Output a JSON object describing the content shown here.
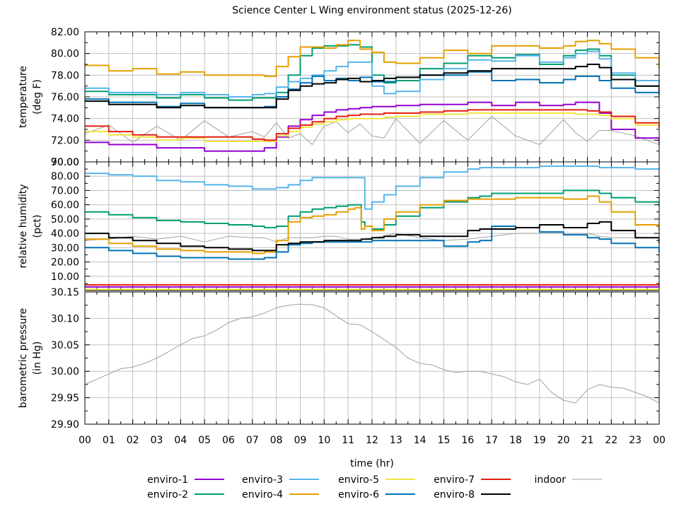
{
  "chart_data": {
    "type": "line",
    "title": "Science Center L Wing environment status (2025-12-26)",
    "xlabel": "time (hr)",
    "x_tick_labels": [
      "00",
      "01",
      "02",
      "03",
      "04",
      "05",
      "06",
      "07",
      "08",
      "09",
      "10",
      "11",
      "12",
      "13",
      "14",
      "15",
      "16",
      "17",
      "18",
      "19",
      "20",
      "21",
      "22",
      "23",
      "00"
    ],
    "xlim": [
      0,
      24
    ],
    "grid": true,
    "legend_placement": "bottom",
    "series_styles": [
      {
        "name": "enviro-1",
        "color": "#9400d3"
      },
      {
        "name": "enviro-2",
        "color": "#009e73"
      },
      {
        "name": "enviro-3",
        "color": "#56b4e9"
      },
      {
        "name": "enviro-4",
        "color": "#e69f00"
      },
      {
        "name": "enviro-5",
        "color": "#f0e442"
      },
      {
        "name": "enviro-6",
        "color": "#0072b2"
      },
      {
        "name": "enviro-7",
        "color": "#e51e10"
      },
      {
        "name": "enviro-8",
        "color": "#000000"
      },
      {
        "name": "indoor",
        "color": "#a0a0a0"
      }
    ],
    "panels": [
      {
        "id": "temperature",
        "ylabel": [
          "temperature",
          "(deg F)"
        ],
        "ylim": [
          70,
          82
        ],
        "y_tick_labels": [
          "70.00",
          "72.00",
          "74.00",
          "76.00",
          "78.00",
          "80.00",
          "82.00"
        ],
        "x": [
          0,
          1,
          2,
          3,
          4,
          5,
          6,
          7,
          7.5,
          8,
          8.5,
          9,
          9.5,
          10,
          10.5,
          11,
          11.5,
          12,
          12.5,
          13,
          14,
          15,
          16,
          17,
          18,
          19,
          20,
          20.5,
          21,
          21.5,
          22,
          23,
          24
        ],
        "series": [
          {
            "name": "enviro-1",
            "values": [
              71.8,
              71.6,
              71.6,
              71.3,
              71.3,
              71.0,
              71.0,
              71.0,
              71.3,
              72.3,
              73.3,
              73.9,
              74.3,
              74.6,
              74.8,
              74.9,
              75.0,
              75.1,
              75.1,
              75.2,
              75.3,
              75.3,
              75.5,
              75.2,
              75.5,
              75.2,
              75.3,
              75.5,
              75.5,
              74.5,
              73.0,
              72.2,
              71.5
            ]
          },
          {
            "name": "enviro-2",
            "values": [
              76.5,
              76.2,
              76.2,
              75.9,
              76.2,
              75.9,
              75.7,
              75.9,
              75.9,
              76.4,
              78.0,
              79.8,
              80.5,
              80.7,
              80.7,
              80.8,
              80.6,
              78.0,
              77.3,
              77.5,
              78.6,
              79.1,
              79.8,
              79.6,
              79.9,
              79.0,
              79.8,
              80.3,
              80.4,
              79.8,
              78.0,
              77.0,
              76.1
            ]
          },
          {
            "name": "enviro-3",
            "values": [
              76.8,
              76.4,
              76.4,
              76.2,
              76.4,
              76.2,
              76.0,
              76.2,
              76.3,
              76.9,
              77.4,
              77.7,
              78.0,
              78.4,
              78.8,
              79.2,
              79.2,
              77.0,
              76.3,
              76.5,
              77.6,
              78.6,
              79.4,
              79.3,
              79.8,
              79.2,
              79.6,
              80.0,
              80.2,
              79.5,
              78.2,
              77.5,
              77.0
            ]
          },
          {
            "name": "enviro-4",
            "values": [
              78.9,
              78.4,
              78.6,
              78.1,
              78.3,
              78.0,
              78.0,
              78.0,
              77.9,
              78.8,
              79.7,
              80.6,
              80.6,
              80.5,
              80.8,
              81.2,
              80.4,
              80.1,
              79.2,
              79.1,
              79.6,
              80.3,
              80.0,
              80.7,
              80.7,
              80.5,
              80.7,
              81.1,
              81.2,
              80.9,
              80.4,
              79.6,
              78.6
            ]
          },
          {
            "name": "enviro-5",
            "values": [
              72.8,
              72.5,
              72.3,
              72.0,
              72.2,
              71.9,
              71.9,
              71.9,
              71.9,
              72.4,
              72.8,
              73.2,
              73.5,
              73.7,
              73.9,
              74.0,
              74.0,
              74.0,
              74.1,
              74.2,
              74.4,
              74.4,
              74.5,
              74.5,
              74.5,
              74.5,
              74.5,
              74.4,
              74.4,
              74.3,
              74.0,
              73.4,
              72.9
            ]
          },
          {
            "name": "enviro-6",
            "values": [
              75.8,
              75.5,
              75.5,
              75.1,
              75.4,
              75.0,
              75.0,
              75.0,
              75.1,
              76.0,
              76.7,
              77.3,
              77.9,
              77.5,
              77.7,
              77.5,
              77.8,
              77.4,
              77.4,
              77.8,
              78.0,
              78.0,
              78.3,
              77.5,
              77.6,
              77.3,
              77.6,
              77.9,
              77.9,
              77.5,
              76.8,
              76.4,
              75.9
            ]
          },
          {
            "name": "enviro-7",
            "values": [
              73.3,
              72.8,
              72.5,
              72.3,
              72.3,
              72.3,
              72.3,
              72.1,
              72.0,
              72.6,
              73.1,
              73.4,
              73.7,
              74.0,
              74.2,
              74.3,
              74.4,
              74.4,
              74.5,
              74.5,
              74.6,
              74.7,
              74.8,
              74.8,
              74.8,
              74.8,
              74.8,
              74.8,
              74.7,
              74.6,
              74.2,
              73.6,
              73.1
            ]
          },
          {
            "name": "enviro-8",
            "values": [
              75.6,
              75.3,
              75.3,
              75.0,
              75.2,
              75.0,
              75.0,
              75.0,
              75.0,
              75.8,
              76.6,
              77.0,
              77.2,
              77.3,
              77.6,
              77.7,
              77.4,
              77.5,
              77.7,
              77.8,
              78.0,
              78.2,
              78.4,
              78.6,
              78.6,
              78.6,
              78.6,
              78.8,
              79.0,
              78.7,
              77.6,
              77.0,
              76.3
            ]
          },
          {
            "name": "indoor",
            "values": [
              72.6,
              73.4,
              71.8,
              73.3,
              72.0,
              73.8,
              72.3,
              72.8,
              72.3,
              73.6,
              72.2,
              72.6,
              71.6,
              73.3,
              73.7,
              72.7,
              73.5,
              72.4,
              72.2,
              74.0,
              71.7,
              73.8,
              72.0,
              74.2,
              72.4,
              71.6,
              73.9,
              72.7,
              71.9,
              72.9,
              72.9,
              72.4,
              71.6
            ]
          }
        ]
      },
      {
        "id": "relative-humidity",
        "ylabel": [
          "relative humidity",
          "(pct)"
        ],
        "ylim": [
          0,
          90
        ],
        "y_tick_labels": [
          "10.00",
          "20.00",
          "30.00",
          "40.00",
          "50.00",
          "60.00",
          "70.00",
          "80.00",
          "90.00"
        ],
        "x": [
          0,
          1,
          2,
          3,
          4,
          5,
          6,
          7,
          7.5,
          8,
          8.5,
          9,
          9.5,
          10,
          10.5,
          11,
          11.3,
          11.55,
          11.7,
          12,
          12.5,
          13,
          14,
          15,
          16,
          16.5,
          17,
          18,
          19,
          20,
          21,
          21.5,
          22,
          23,
          24
        ],
        "series": [
          {
            "name": "enviro-1",
            "values": [
              2.5,
              2.5,
              2.5,
              2.5,
              2.5,
              2.5,
              2.5,
              2.5,
              2.5,
              2.5,
              2.5,
              2.5,
              2.5,
              2.5,
              2.5,
              2.5,
              2.5,
              2.5,
              2.5,
              2.5,
              2.5,
              2.5,
              2.5,
              2.5,
              2.5,
              2.5,
              2.5,
              2.5,
              2.5,
              2.5,
              2.5,
              2.5,
              2.5,
              2.5,
              2.5
            ]
          },
          {
            "name": "enviro-2",
            "values": [
              55,
              53,
              51,
              49,
              48,
              47,
              46,
              45,
              44,
              45,
              52,
              55,
              57,
              58,
              59,
              60,
              60,
              48,
              45,
              43,
              46,
              52,
              58,
              62,
              65,
              66,
              68,
              68,
              68,
              70,
              70,
              68,
              65,
              62,
              59
            ]
          },
          {
            "name": "enviro-3",
            "values": [
              82,
              81,
              80,
              77,
              76,
              74,
              73,
              71,
              71,
              72,
              74,
              77,
              79,
              79,
              79,
              79,
              79,
              79,
              57,
              62,
              67,
              73,
              79,
              83,
              85,
              86,
              86,
              86,
              87,
              87,
              87,
              86,
              86,
              85,
              84
            ]
          },
          {
            "name": "enviro-4",
            "values": [
              36,
              33,
              31,
              29,
              28,
              27,
              27,
              26,
              27,
              35,
              48,
              51,
              52,
              53,
              55,
              57,
              58,
              43,
              45,
              42,
              50,
              55,
              60,
              63,
              64,
              64,
              64,
              65,
              65,
              64,
              66,
              62,
              55,
              46,
              42
            ]
          },
          {
            "name": "enviro-5",
            "values": [
              0.8,
              0.8,
              0.8,
              0.8,
              0.8,
              0.8,
              0.8,
              0.8,
              0.8,
              0.8,
              0.8,
              0.8,
              0.8,
              0.8,
              0.8,
              0.8,
              0.8,
              0.8,
              0.8,
              0.8,
              0.8,
              0.8,
              0.8,
              0.8,
              0.8,
              0.8,
              0.8,
              0.8,
              0.8,
              0.8,
              0.8,
              0.8,
              0.8,
              0.8,
              0.8
            ]
          },
          {
            "name": "enviro-6",
            "values": [
              30,
              28,
              26,
              24,
              23,
              23,
              22,
              22,
              23,
              27,
              32,
              33,
              34,
              34,
              34,
              34,
              34,
              34,
              34,
              35,
              35,
              35,
              35,
              31,
              34,
              35,
              45,
              44,
              41,
              39,
              37,
              36,
              33,
              30,
              27
            ]
          },
          {
            "name": "enviro-7",
            "values": [
              4,
              4,
              4,
              4,
              4,
              4,
              4,
              4,
              4,
              4,
              4,
              4,
              4,
              4,
              4,
              4,
              4,
              4,
              4,
              4,
              4,
              4,
              4,
              4,
              4,
              4,
              4,
              4,
              4,
              4,
              4,
              4,
              4,
              4,
              4
            ]
          },
          {
            "name": "enviro-8",
            "values": [
              40,
              37,
              35,
              33,
              31,
              30,
              29,
              28,
              28,
              32,
              33,
              34,
              34,
              35,
              35,
              35,
              35,
              36,
              36,
              37,
              38,
              39,
              38,
              38,
              42,
              43,
              43,
              44,
              46,
              44,
              47,
              48,
              42,
              37,
              33
            ]
          },
          {
            "name": "indoor",
            "values": [
              35,
              36,
              38,
              36,
              38,
              34,
              38,
              37,
              37,
              34,
              37,
              37,
              37,
              38,
              38,
              36,
              36,
              36,
              36,
              37,
              38,
              40,
              37,
              35,
              36,
              37,
              38,
              40,
              40,
              40,
              40,
              38,
              37,
              37,
              37
            ]
          }
        ]
      },
      {
        "id": "barometric-pressure",
        "ylabel": [
          "barometric pressure",
          "(in Hg)"
        ],
        "ylim": [
          29.9,
          30.15
        ],
        "y_tick_labels": [
          "29.90",
          "29.95",
          "30.00",
          "30.05",
          "30.10",
          "30.15"
        ],
        "x": [
          0,
          0.5,
          1,
          1.5,
          2,
          2.5,
          3,
          3.5,
          4,
          4.5,
          5,
          5.5,
          6,
          6.5,
          7,
          7.5,
          8,
          8.5,
          9,
          9.5,
          10,
          10.5,
          11,
          11.5,
          12,
          12.5,
          13,
          13.5,
          14,
          14.5,
          15,
          15.5,
          16,
          16.5,
          17,
          17.5,
          18,
          18.5,
          19,
          19.5,
          20,
          20.5,
          21,
          21.5,
          22,
          22.5,
          23,
          23.5,
          24
        ],
        "series": [
          {
            "name": "indoor",
            "values": [
              29.975,
              29.985,
              29.995,
              30.005,
              30.008,
              30.015,
              30.025,
              30.037,
              30.05,
              30.062,
              30.067,
              30.078,
              30.092,
              30.1,
              30.103,
              30.11,
              30.12,
              30.125,
              30.127,
              30.126,
              30.12,
              30.105,
              30.09,
              30.088,
              30.075,
              30.06,
              30.045,
              30.025,
              30.015,
              30.012,
              30.003,
              29.998,
              30.0,
              30.0,
              29.995,
              29.99,
              29.98,
              29.975,
              29.985,
              29.96,
              29.945,
              29.94,
              29.965,
              29.975,
              29.97,
              29.968,
              29.96,
              29.952,
              29.94
            ]
          }
        ]
      }
    ],
    "legend": [
      [
        "enviro-1",
        "enviro-3",
        "enviro-5",
        "enviro-7",
        "indoor"
      ],
      [
        "enviro-2",
        "enviro-4",
        "enviro-6",
        "enviro-8"
      ]
    ]
  }
}
